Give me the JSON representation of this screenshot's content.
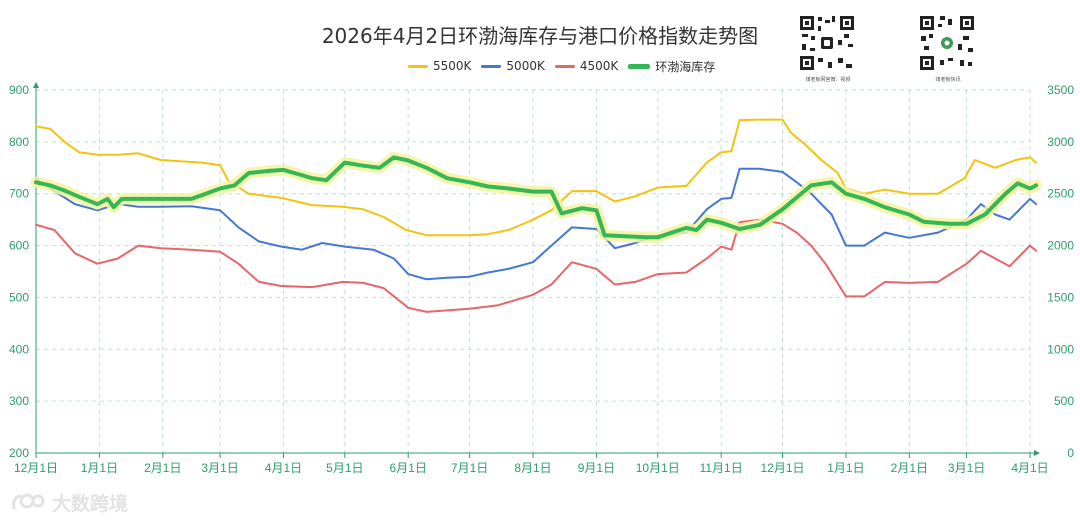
{
  "header": {
    "title": "2026年4月2日环渤海库存与港口价格指数走势图",
    "qr_left_caption": "煤老板网官微：视频",
    "qr_right_caption": "煤老板快讯"
  },
  "watermark": {
    "text": "大数跨境"
  },
  "colors": {
    "axis": "#2e9e6b",
    "grid": "#b9e3d2",
    "s5500": "#f2c40f",
    "s5000": "#4477d6",
    "s4500": "#e8656a",
    "inventory": "#35b854",
    "inventory_glow": "#f3f3a0"
  },
  "chart_data": {
    "type": "line",
    "title": "2026年4月2日环渤海库存与港口价格指数走势图",
    "x_axis": {
      "labels": [
        "12月1日",
        "1月1日",
        "2月1日",
        "3月1日",
        "4月1日",
        "5月1日",
        "6月1日",
        "7月1日",
        "8月1日",
        "9月1日",
        "10月1日",
        "11月1日",
        "12月1日",
        "1月1日",
        "2月1日",
        "3月1日",
        "4月1日"
      ],
      "start": "2024-12-01",
      "end": "2026-04-01"
    },
    "y_axis_left": {
      "min": 200,
      "max": 900,
      "ticks": [
        200,
        300,
        400,
        500,
        600,
        700,
        800,
        900
      ]
    },
    "y_axis_right": {
      "min": 0,
      "max": 3500,
      "ticks": [
        0,
        500,
        1000,
        1500,
        2000,
        2500,
        3000,
        3500
      ]
    },
    "grid": true,
    "legend_position": "top-center",
    "series": [
      {
        "name": "5500K",
        "axis": "left",
        "points": [
          [
            "2024-12-01",
            830
          ],
          [
            "2024-12-08",
            825
          ],
          [
            "2024-12-15",
            800
          ],
          [
            "2024-12-22",
            780
          ],
          [
            "2024-12-31",
            775
          ],
          [
            "2025-01-10",
            775
          ],
          [
            "2025-01-20",
            778
          ],
          [
            "2025-01-31",
            765
          ],
          [
            "2025-02-20",
            760
          ],
          [
            "2025-03-01",
            755
          ],
          [
            "2025-03-05",
            725
          ],
          [
            "2025-03-15",
            700
          ],
          [
            "2025-03-31",
            692
          ],
          [
            "2025-04-15",
            678
          ],
          [
            "2025-04-30",
            675
          ],
          [
            "2025-05-10",
            670
          ],
          [
            "2025-05-20",
            655
          ],
          [
            "2025-05-31",
            630
          ],
          [
            "2025-06-10",
            620
          ],
          [
            "2025-06-20",
            620
          ],
          [
            "2025-07-01",
            620
          ],
          [
            "2025-07-10",
            622
          ],
          [
            "2025-07-20",
            630
          ],
          [
            "2025-07-31",
            648
          ],
          [
            "2025-08-10",
            668
          ],
          [
            "2025-08-20",
            705
          ],
          [
            "2025-09-01",
            705
          ],
          [
            "2025-09-10",
            685
          ],
          [
            "2025-09-20",
            695
          ],
          [
            "2025-10-01",
            712
          ],
          [
            "2025-10-15",
            715
          ],
          [
            "2025-10-25",
            760
          ],
          [
            "2025-11-01",
            780
          ],
          [
            "2025-11-06",
            782
          ],
          [
            "2025-11-10",
            842
          ],
          [
            "2025-11-20",
            843
          ],
          [
            "2025-12-01",
            843
          ],
          [
            "2025-12-05",
            818
          ],
          [
            "2025-12-12",
            795
          ],
          [
            "2025-12-20",
            765
          ],
          [
            "2025-12-28",
            740
          ],
          [
            "2026-01-01",
            710
          ],
          [
            "2026-01-10",
            700
          ],
          [
            "2026-01-20",
            708
          ],
          [
            "2026-02-01",
            700
          ],
          [
            "2026-02-15",
            700
          ],
          [
            "2026-02-28",
            730
          ],
          [
            "2026-03-05",
            765
          ],
          [
            "2026-03-15",
            750
          ],
          [
            "2026-03-25",
            765
          ],
          [
            "2026-04-01",
            770
          ],
          [
            "2026-04-04",
            760
          ]
        ]
      },
      {
        "name": "5000K",
        "axis": "left",
        "points": [
          [
            "2024-12-01",
            730
          ],
          [
            "2024-12-10",
            705
          ],
          [
            "2024-12-20",
            680
          ],
          [
            "2024-12-31",
            668
          ],
          [
            "2025-01-10",
            680
          ],
          [
            "2025-01-20",
            675
          ],
          [
            "2025-01-31",
            675
          ],
          [
            "2025-02-15",
            676
          ],
          [
            "2025-03-01",
            668
          ],
          [
            "2025-03-10",
            635
          ],
          [
            "2025-03-20",
            608
          ],
          [
            "2025-03-31",
            598
          ],
          [
            "2025-04-10",
            592
          ],
          [
            "2025-04-20",
            605
          ],
          [
            "2025-05-01",
            598
          ],
          [
            "2025-05-15",
            592
          ],
          [
            "2025-05-25",
            575
          ],
          [
            "2025-06-01",
            545
          ],
          [
            "2025-06-10",
            535
          ],
          [
            "2025-06-20",
            538
          ],
          [
            "2025-07-01",
            540
          ],
          [
            "2025-07-10",
            548
          ],
          [
            "2025-07-20",
            555
          ],
          [
            "2025-08-01",
            568
          ],
          [
            "2025-08-10",
            600
          ],
          [
            "2025-08-20",
            635
          ],
          [
            "2025-09-01",
            632
          ],
          [
            "2025-09-10",
            595
          ],
          [
            "2025-09-20",
            605
          ],
          [
            "2025-10-01",
            620
          ],
          [
            "2025-10-15",
            625
          ],
          [
            "2025-10-25",
            670
          ],
          [
            "2025-11-01",
            690
          ],
          [
            "2025-11-06",
            692
          ],
          [
            "2025-11-10",
            748
          ],
          [
            "2025-11-20",
            748
          ],
          [
            "2025-12-01",
            742
          ],
          [
            "2025-12-08",
            722
          ],
          [
            "2025-12-15",
            700
          ],
          [
            "2025-12-25",
            660
          ],
          [
            "2026-01-01",
            600
          ],
          [
            "2026-01-10",
            600
          ],
          [
            "2026-01-20",
            625
          ],
          [
            "2026-02-01",
            615
          ],
          [
            "2026-02-15",
            625
          ],
          [
            "2026-03-01",
            650
          ],
          [
            "2026-03-08",
            680
          ],
          [
            "2026-03-15",
            660
          ],
          [
            "2026-03-22",
            650
          ],
          [
            "2026-04-01",
            690
          ],
          [
            "2026-04-04",
            680
          ]
        ]
      },
      {
        "name": "4500K",
        "axis": "left",
        "points": [
          [
            "2024-12-01",
            640
          ],
          [
            "2024-12-10",
            630
          ],
          [
            "2024-12-20",
            585
          ],
          [
            "2024-12-31",
            565
          ],
          [
            "2025-01-10",
            575
          ],
          [
            "2025-01-20",
            600
          ],
          [
            "2025-01-31",
            595
          ],
          [
            "2025-02-15",
            592
          ],
          [
            "2025-03-01",
            588
          ],
          [
            "2025-03-10",
            565
          ],
          [
            "2025-03-20",
            530
          ],
          [
            "2025-03-31",
            522
          ],
          [
            "2025-04-15",
            520
          ],
          [
            "2025-04-30",
            530
          ],
          [
            "2025-05-10",
            528
          ],
          [
            "2025-05-20",
            518
          ],
          [
            "2025-06-01",
            480
          ],
          [
            "2025-06-10",
            472
          ],
          [
            "2025-06-20",
            475
          ],
          [
            "2025-07-01",
            478
          ],
          [
            "2025-07-15",
            485
          ],
          [
            "2025-08-01",
            505
          ],
          [
            "2025-08-10",
            525
          ],
          [
            "2025-08-20",
            568
          ],
          [
            "2025-09-01",
            555
          ],
          [
            "2025-09-10",
            525
          ],
          [
            "2025-09-20",
            530
          ],
          [
            "2025-10-01",
            545
          ],
          [
            "2025-10-15",
            548
          ],
          [
            "2025-10-25",
            575
          ],
          [
            "2025-11-01",
            598
          ],
          [
            "2025-11-06",
            592
          ],
          [
            "2025-11-10",
            645
          ],
          [
            "2025-11-20",
            650
          ],
          [
            "2025-12-01",
            642
          ],
          [
            "2025-12-08",
            625
          ],
          [
            "2025-12-15",
            600
          ],
          [
            "2025-12-22",
            565
          ],
          [
            "2026-01-01",
            502
          ],
          [
            "2026-01-10",
            502
          ],
          [
            "2026-01-20",
            530
          ],
          [
            "2026-02-01",
            528
          ],
          [
            "2026-02-15",
            530
          ],
          [
            "2026-03-01",
            565
          ],
          [
            "2026-03-08",
            590
          ],
          [
            "2026-03-15",
            575
          ],
          [
            "2026-03-22",
            560
          ],
          [
            "2026-04-01",
            600
          ],
          [
            "2026-04-04",
            590
          ]
        ]
      },
      {
        "name": "环渤海库存",
        "axis": "right",
        "points": [
          [
            "2024-12-01",
            2610
          ],
          [
            "2024-12-08",
            2580
          ],
          [
            "2024-12-15",
            2530
          ],
          [
            "2024-12-22",
            2470
          ],
          [
            "2024-12-31",
            2400
          ],
          [
            "2025-01-05",
            2450
          ],
          [
            "2025-01-08",
            2370
          ],
          [
            "2025-01-12",
            2450
          ],
          [
            "2025-01-20",
            2450
          ],
          [
            "2025-01-31",
            2450
          ],
          [
            "2025-02-15",
            2450
          ],
          [
            "2025-02-22",
            2500
          ],
          [
            "2025-03-01",
            2550
          ],
          [
            "2025-03-08",
            2580
          ],
          [
            "2025-03-15",
            2700
          ],
          [
            "2025-03-25",
            2720
          ],
          [
            "2025-04-01",
            2730
          ],
          [
            "2025-04-08",
            2690
          ],
          [
            "2025-04-15",
            2650
          ],
          [
            "2025-04-22",
            2630
          ],
          [
            "2025-05-01",
            2800
          ],
          [
            "2025-05-10",
            2770
          ],
          [
            "2025-05-18",
            2750
          ],
          [
            "2025-05-25",
            2850
          ],
          [
            "2025-06-01",
            2820
          ],
          [
            "2025-06-10",
            2750
          ],
          [
            "2025-06-20",
            2650
          ],
          [
            "2025-07-01",
            2610
          ],
          [
            "2025-07-10",
            2570
          ],
          [
            "2025-07-20",
            2550
          ],
          [
            "2025-08-01",
            2520
          ],
          [
            "2025-08-10",
            2520
          ],
          [
            "2025-08-15",
            2310
          ],
          [
            "2025-08-25",
            2360
          ],
          [
            "2025-09-01",
            2340
          ],
          [
            "2025-09-05",
            2100
          ],
          [
            "2025-09-15",
            2090
          ],
          [
            "2025-09-25",
            2080
          ],
          [
            "2025-10-01",
            2080
          ],
          [
            "2025-10-10",
            2140
          ],
          [
            "2025-10-15",
            2170
          ],
          [
            "2025-10-20",
            2150
          ],
          [
            "2025-10-25",
            2250
          ],
          [
            "2025-11-01",
            2220
          ],
          [
            "2025-11-10",
            2160
          ],
          [
            "2025-11-20",
            2200
          ],
          [
            "2025-12-01",
            2350
          ],
          [
            "2025-12-15",
            2580
          ],
          [
            "2025-12-25",
            2610
          ],
          [
            "2026-01-01",
            2500
          ],
          [
            "2026-01-10",
            2450
          ],
          [
            "2026-01-20",
            2370
          ],
          [
            "2026-02-01",
            2300
          ],
          [
            "2026-02-08",
            2230
          ],
          [
            "2026-02-20",
            2210
          ],
          [
            "2026-03-01",
            2210
          ],
          [
            "2026-03-10",
            2300
          ],
          [
            "2026-03-20",
            2500
          ],
          [
            "2026-03-26",
            2600
          ],
          [
            "2026-04-01",
            2550
          ],
          [
            "2026-04-04",
            2580
          ]
        ]
      }
    ]
  }
}
